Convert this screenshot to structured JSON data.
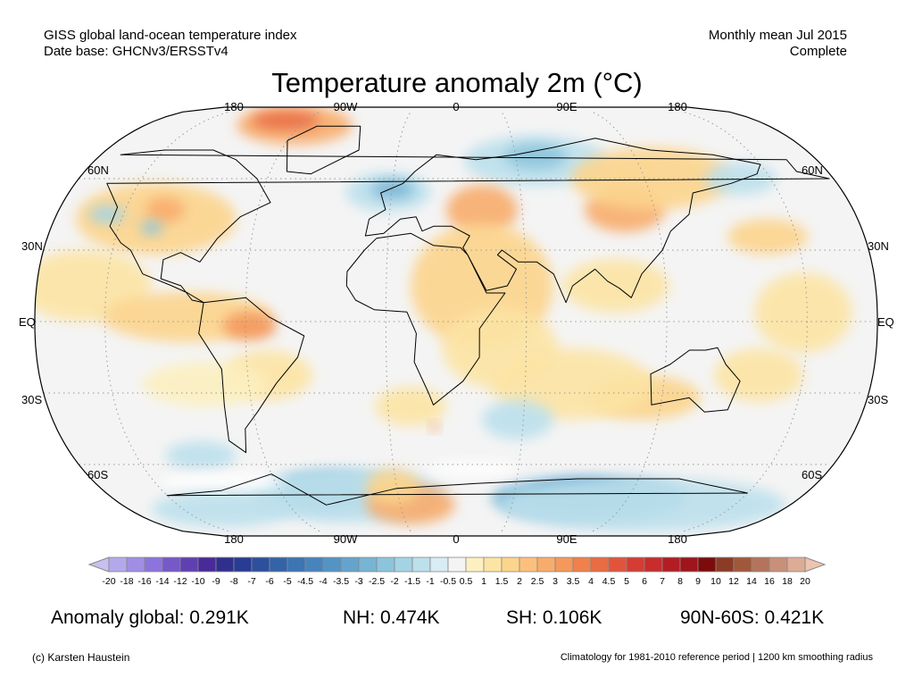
{
  "header": {
    "line1_left": "GISS global land-ocean temperature index",
    "line2_left": "Date base: GHCNv3/ERSSTv4",
    "line1_right": "Monthly mean Jul 2015",
    "line2_right": "Complete"
  },
  "title": "Temperature anomaly 2m (°C)",
  "axes": {
    "lon_labels": [
      "180",
      "90W",
      "0",
      "90E",
      "180"
    ],
    "lat_labels": [
      "60N",
      "30N",
      "EQ",
      "30S",
      "60S"
    ]
  },
  "colorbar": {
    "ticks": [
      "-20",
      "-18",
      "-16",
      "-14",
      "-12",
      "-10",
      "-9",
      "-8",
      "-7",
      "-6",
      "-5",
      "-4.5",
      "-4",
      "-3.5",
      "-3",
      "-2.5",
      "-2",
      "-1.5",
      "-1",
      "-0.5",
      "0.5",
      "1",
      "1.5",
      "2",
      "2.5",
      "3",
      "3.5",
      "4",
      "4.5",
      "5",
      "6",
      "7",
      "8",
      "9",
      "10",
      "12",
      "14",
      "16",
      "18",
      "20"
    ],
    "colors": [
      "#c8c0f0",
      "#b4a8ec",
      "#a08ee4",
      "#8c74dc",
      "#7658c8",
      "#6040b0",
      "#482a98",
      "#30308c",
      "#283c94",
      "#2c509c",
      "#3464a8",
      "#3c74b4",
      "#4884bc",
      "#5494c4",
      "#64a4cc",
      "#78b4d4",
      "#8cc4dc",
      "#a4d4e4",
      "#bce0ec",
      "#d8ecf4",
      "#f4f4f4",
      "#fcf0c0",
      "#fce4a4",
      "#fcd48c",
      "#fcc07c",
      "#f8ac6c",
      "#f4985c",
      "#f0804c",
      "#e86c44",
      "#e0543c",
      "#d43c34",
      "#c82c2c",
      "#b41c24",
      "#a0141c",
      "#7c0c0c",
      "#8c3c24",
      "#a0583c",
      "#b4745c",
      "#c89078",
      "#dcac94",
      "#ecc4b0"
    ]
  },
  "stats": {
    "global": "Anomaly global: 0.291K",
    "nh": "NH: 0.474K",
    "sh": "SH: 0.106K",
    "arctic": "90N-60S: 0.421K"
  },
  "footer": {
    "left": "(c) Karsten Haustein",
    "right": "Climatology for 1981-2010 reference period | 1200 km smoothing radius"
  }
}
